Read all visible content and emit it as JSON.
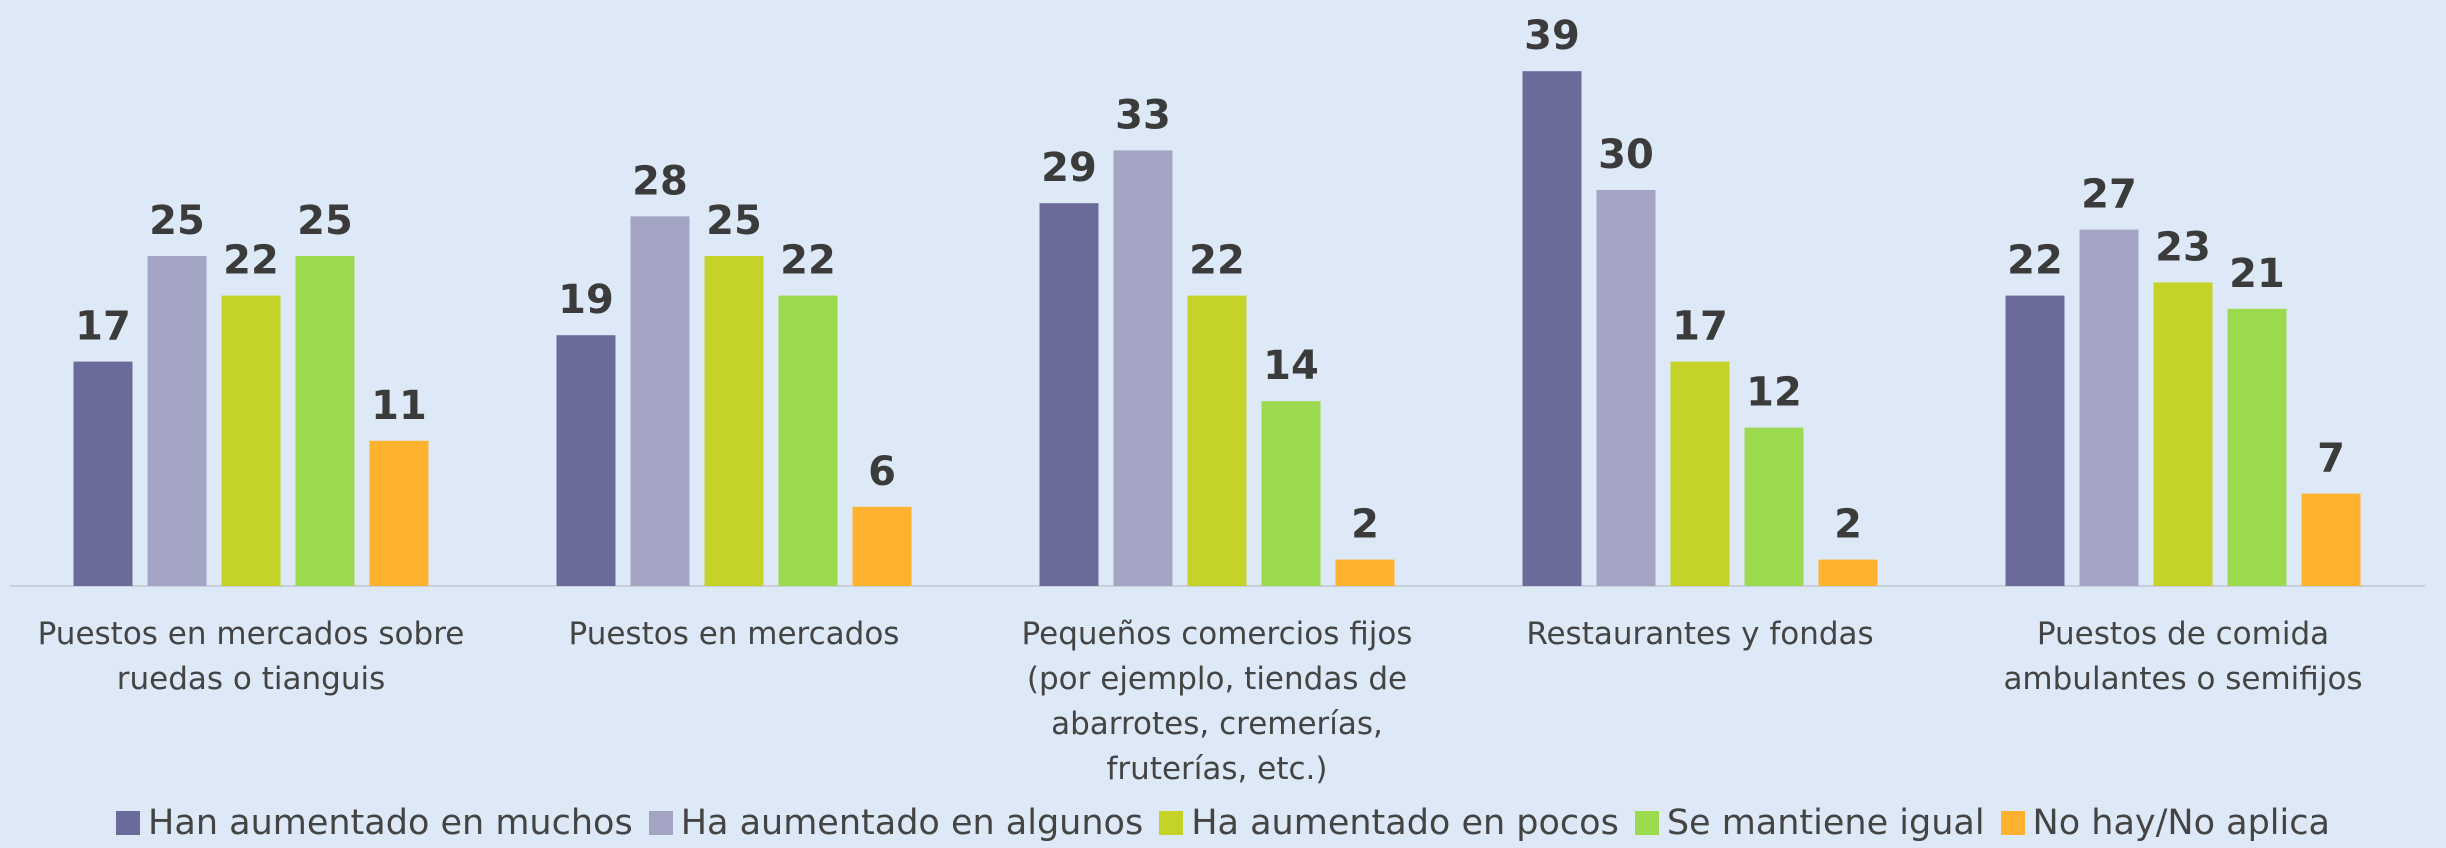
{
  "chart_data": {
    "type": "bar",
    "categories": [
      "Puestos en mercados sobre ruedas o tianguis",
      "Puestos en mercados",
      "Pequeños comercios fijos (por ejemplo, tiendas de abarrotes, cremerías, fruterías, etc.)",
      "Restaurantes y fondas",
      "Puestos de comida ambulantes o semifijos"
    ],
    "series": [
      {
        "name": "Han aumentado en muchos",
        "color": "#6b6b9b",
        "values": [
          17,
          19,
          29,
          39,
          22
        ]
      },
      {
        "name": "Ha aumentado en algunos",
        "color": "#a3a3c4",
        "values": [
          25,
          28,
          33,
          30,
          27
        ]
      },
      {
        "name": "Ha aumentado en pocos",
        "color": "#c5d228",
        "values": [
          22,
          25,
          22,
          17,
          23
        ]
      },
      {
        "name": "Se mantiene igual",
        "color": "#9bd94f",
        "values": [
          25,
          22,
          14,
          12,
          21
        ]
      },
      {
        "name": "No hay/No aplica",
        "color": "#ffb230",
        "values": [
          11,
          6,
          2,
          2,
          7
        ]
      }
    ],
    "legend": "bottom"
  }
}
